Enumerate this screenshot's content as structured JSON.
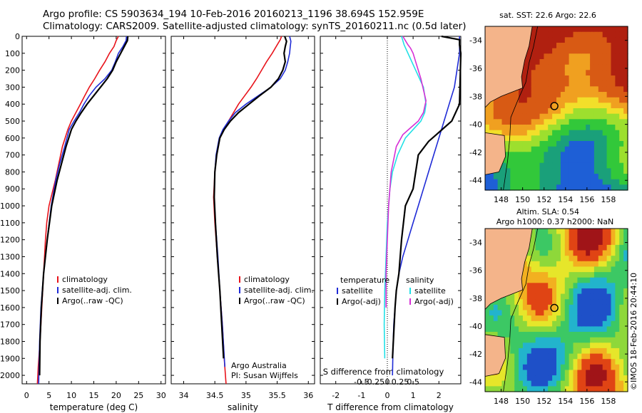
{
  "title_line1": "Argo profile: CS 5903634_194 10-Feb-2016 20160213_1196 38.694S 152.959E",
  "title_line2": "Climatology: CARS2009. Satellite-adjusted climatology: synTS_20160211.nc (0.5d later)",
  "credit": "©IMOS 18-Feb-2016 20:44:10",
  "colors": {
    "climatology": "#e8131b",
    "satellite": "#1f2bd6",
    "argo": "#000000",
    "sat_salinity": "#22e0e6",
    "argo_salinity": "#d62fd6"
  },
  "chart_data": [
    {
      "type": "line",
      "panel": "temperature",
      "xlabel": "temperature (deg C)",
      "ylabel": "",
      "xlim": [
        -1,
        31
      ],
      "ylim": [
        2050,
        0
      ],
      "xticks": [
        "0",
        "5",
        "10",
        "15",
        "20",
        "25",
        "30"
      ],
      "yticks": [
        "0",
        "100",
        "200",
        "300",
        "400",
        "500",
        "600",
        "700",
        "800",
        "900",
        "1000",
        "1100",
        "1200",
        "1300",
        "1400",
        "1500",
        "1600",
        "1700",
        "1800",
        "1900",
        "2000"
      ],
      "legend": [
        "climatology",
        "satellite-adj. clim.",
        "Argo(..raw -QC)"
      ],
      "series": [
        {
          "name": "climatology",
          "color": "climatology",
          "x": [
            20.5,
            20.0,
            19.5,
            18.5,
            17.5,
            16.3,
            15.2,
            14.0,
            13.0,
            12.0,
            11.0,
            10.0,
            9.2,
            8.0,
            7.2,
            6.4,
            5.0,
            4.5,
            4.2,
            3.8,
            3.4,
            3.0,
            2.6,
            2.4
          ],
          "y": [
            0,
            25,
            60,
            100,
            150,
            200,
            250,
            300,
            350,
            400,
            450,
            500,
            550,
            650,
            750,
            850,
            1000,
            1100,
            1200,
            1400,
            1600,
            1800,
            1950,
            2050
          ]
        },
        {
          "name": "satellite-adj. clim.",
          "color": "satellite",
          "x": [
            22.3,
            22.2,
            21.5,
            20.5,
            19.8,
            19.0,
            17.5,
            15.5,
            14.0,
            12.8,
            11.8,
            10.6,
            9.5,
            8.5,
            7.4,
            6.5,
            5.5,
            4.6,
            3.8,
            3.2,
            2.9,
            2.7
          ],
          "y": [
            0,
            25,
            60,
            100,
            150,
            200,
            250,
            300,
            350,
            400,
            450,
            500,
            550,
            650,
            750,
            850,
            1000,
            1200,
            1400,
            1600,
            1800,
            2050
          ]
        },
        {
          "name": "Argo(..raw -QC)",
          "color": "argo",
          "x": [
            22.6,
            22.5,
            21.8,
            21.0,
            20.0,
            19.2,
            18.0,
            16.5,
            15.0,
            13.5,
            12.2,
            11.0,
            10.0,
            8.8,
            7.8,
            6.8,
            5.6,
            4.6,
            3.8,
            3.3,
            3.0,
            2.9
          ],
          "y": [
            0,
            25,
            60,
            100,
            150,
            200,
            250,
            300,
            350,
            400,
            450,
            500,
            550,
            650,
            750,
            850,
            1000,
            1200,
            1400,
            1600,
            1800,
            2000
          ]
        }
      ]
    },
    {
      "type": "line",
      "panel": "salinity",
      "xlabel": "salinity",
      "xlim": [
        33.8,
        36.1
      ],
      "ylim": [
        2050,
        0
      ],
      "xticks": [
        "34",
        "34.5",
        "35",
        "35.5",
        "36"
      ],
      "legend": [
        "climatology",
        "satellite-adj. clim.",
        "Argo(..raw -QC)"
      ],
      "annotation": [
        "Argo Australia",
        "PI: Susan Wijffels"
      ],
      "series": [
        {
          "name": "climatology",
          "color": "climatology",
          "x": [
            35.57,
            35.55,
            35.5,
            35.42,
            35.33,
            35.25,
            35.17,
            35.08,
            34.98,
            34.88,
            34.8,
            34.72,
            34.65,
            34.58,
            34.53,
            34.5,
            34.48,
            34.5,
            34.54,
            34.58,
            34.62,
            34.65,
            34.68
          ],
          "y": [
            0,
            20,
            50,
            100,
            150,
            200,
            250,
            300,
            350,
            400,
            450,
            500,
            550,
            600,
            700,
            800,
            950,
            1100,
            1300,
            1500,
            1700,
            1900,
            2050
          ]
        },
        {
          "name": "satellite-adj. clim.",
          "color": "satellite",
          "x": [
            35.7,
            35.72,
            35.71,
            35.7,
            35.67,
            35.63,
            35.55,
            35.4,
            35.2,
            35.0,
            34.83,
            34.72,
            34.63,
            34.57,
            34.52,
            34.5,
            34.49,
            34.51,
            34.55,
            34.58,
            34.62,
            34.66
          ],
          "y": [
            0,
            30,
            60,
            100,
            150,
            200,
            250,
            300,
            350,
            400,
            450,
            500,
            550,
            600,
            700,
            800,
            950,
            1100,
            1300,
            1500,
            1700,
            1950
          ]
        },
        {
          "name": "Argo(..raw -QC)",
          "color": "argo",
          "x": [
            35.62,
            35.65,
            35.63,
            35.61,
            35.63,
            35.59,
            35.52,
            35.4,
            35.22,
            35.05,
            34.88,
            34.75,
            34.65,
            34.58,
            34.53,
            34.5,
            34.49,
            34.51,
            34.54,
            34.58,
            34.61,
            34.64
          ],
          "y": [
            0,
            30,
            60,
            100,
            150,
            200,
            250,
            300,
            350,
            400,
            450,
            500,
            550,
            600,
            700,
            800,
            950,
            1100,
            1300,
            1500,
            1700,
            1900
          ]
        }
      ]
    },
    {
      "type": "line",
      "panel": "difference",
      "xlabel": "T difference from climatology",
      "xlabel_top": "S difference from climatology",
      "xlim": [
        -2.6,
        2.85
      ],
      "ylim": [
        2050,
        0
      ],
      "xticks": [
        "-2",
        "-1",
        "0",
        "1",
        "2"
      ],
      "xticks_s": [
        "-0.5",
        "-0.25",
        "0",
        "0.25",
        "0.5"
      ],
      "legend_headers": [
        "temperature",
        "salinity"
      ],
      "legend": [
        "satellite",
        "Argo(-adj)",
        "satellite",
        "Argo(-adj)"
      ],
      "series": [
        {
          "name": "satellite",
          "color": "satellite",
          "x": [
            2.8,
            2.8,
            2.7,
            2.6,
            2.4,
            2.2,
            2.0,
            1.8,
            1.6,
            1.4,
            1.2,
            1.0,
            0.8,
            0.6,
            0.45,
            0.35,
            0.3,
            0.25,
            0.22,
            0.2
          ],
          "y": [
            0,
            100,
            200,
            300,
            400,
            500,
            600,
            700,
            800,
            900,
            1000,
            1100,
            1200,
            1300,
            1400,
            1500,
            1600,
            1700,
            1850,
            2000
          ]
        },
        {
          "name": "Argo(-adj)",
          "color": "argo",
          "x": [
            2.1,
            2.8,
            2.8,
            2.85,
            2.8,
            2.5,
            2.2,
            1.9,
            1.6,
            1.2,
            1.0,
            0.7,
            0.55,
            0.45,
            0.35,
            0.3,
            0.25,
            0.2
          ],
          "y": [
            0,
            20,
            50,
            100,
            400,
            500,
            540,
            580,
            620,
            700,
            900,
            1000,
            1200,
            1400,
            1500,
            1600,
            1750,
            1900
          ]
        },
        {
          "name": "satellite",
          "color": "sat_salinity",
          "x": [
            0.55,
            0.65,
            0.8,
            1.1,
            1.4,
            1.5,
            1.45,
            1.3,
            1.0,
            0.7,
            0.4,
            0.2,
            0.1,
            0.05,
            0.0,
            -0.05,
            -0.1,
            -0.12,
            -0.1
          ],
          "y": [
            0,
            50,
            100,
            200,
            300,
            400,
            450,
            500,
            550,
            600,
            700,
            800,
            900,
            1000,
            1100,
            1300,
            1500,
            1700,
            1900
          ]
        },
        {
          "name": "Argo(-adj)",
          "color": "argo_salinity",
          "x": [
            0.6,
            0.8,
            0.9,
            1.0,
            1.1,
            1.3,
            1.5,
            1.4,
            1.2,
            0.9,
            0.6,
            0.35,
            0.15,
            0.05,
            0.0,
            -0.05,
            -0.05
          ],
          "y": [
            0,
            50,
            70,
            100,
            150,
            250,
            380,
            450,
            500,
            540,
            580,
            650,
            800,
            1000,
            1200,
            1400,
            1600
          ]
        }
      ]
    }
  ],
  "map_sst": {
    "title": "sat. SST: 22.6  Argo: 22.6",
    "lon_ticks": [
      "148",
      "150",
      "152",
      "154",
      "156",
      "158"
    ],
    "lat_ticks": [
      "-34",
      "-36",
      "-38",
      "-40",
      "-42",
      "-44"
    ],
    "marker": {
      "lon": 152.959,
      "lat": -38.694
    }
  },
  "map_sla": {
    "title1": "Altim. SLA: 0.54",
    "title2": "Argo h1000: 0.37 h2000: NaN",
    "lon_ticks": [
      "148",
      "150",
      "152",
      "154",
      "156",
      "158"
    ],
    "lat_ticks": [
      "-34",
      "-36",
      "-38",
      "-40",
      "-42",
      "-44"
    ],
    "marker": {
      "lon": 152.959,
      "lat": -38.694
    }
  }
}
